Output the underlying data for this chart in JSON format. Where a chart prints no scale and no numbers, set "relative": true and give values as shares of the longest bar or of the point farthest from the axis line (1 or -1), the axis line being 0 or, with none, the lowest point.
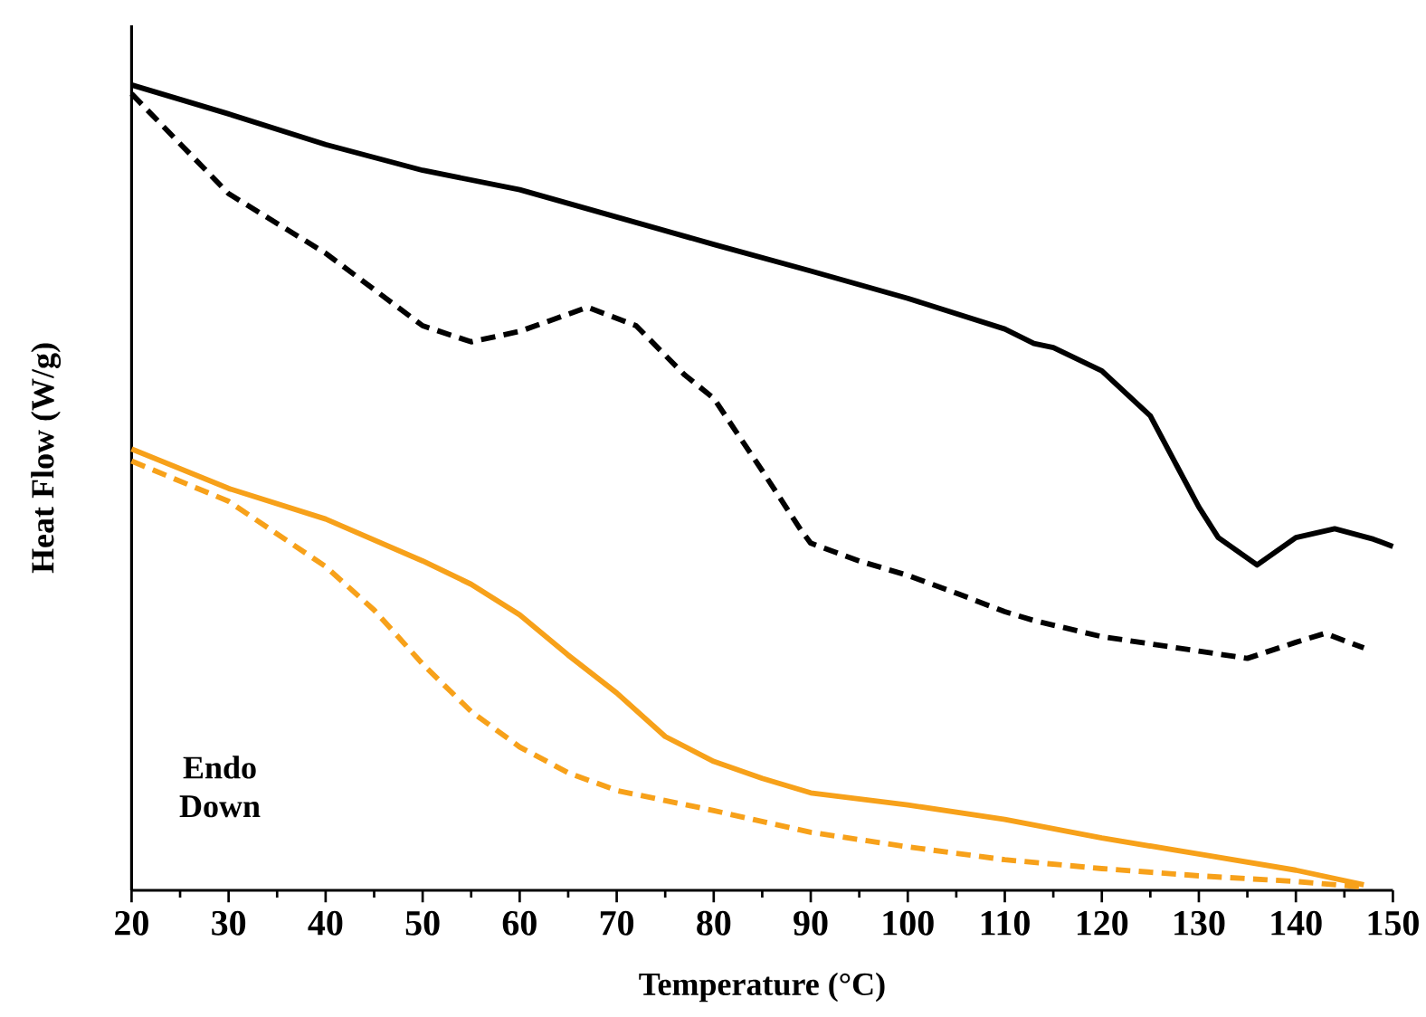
{
  "chart_data": {
    "type": "line",
    "xlabel": "Temperature (°C)",
    "ylabel": "Heat Flow (W/g)",
    "relative": true,
    "tick_labels": "x",
    "xlim": [
      20,
      150
    ],
    "xticks": [
      20,
      30,
      40,
      50,
      60,
      70,
      80,
      90,
      100,
      110,
      120,
      130,
      140,
      150
    ],
    "marker": "none",
    "annotations": [
      "Endo Down"
    ],
    "series": [
      {
        "color": "#000000",
        "line_style": "solid",
        "x": [
          20,
          30,
          40,
          50,
          60,
          70,
          80,
          90,
          100,
          110,
          113,
          115,
          120,
          125,
          128,
          130,
          132,
          136,
          140,
          144,
          148,
          150
        ],
        "values": [
          1.0,
          0.964,
          0.926,
          0.894,
          0.87,
          0.836,
          0.802,
          0.769,
          0.735,
          0.697,
          0.679,
          0.674,
          0.645,
          0.589,
          0.521,
          0.476,
          0.438,
          0.404,
          0.438,
          0.449,
          0.436,
          0.427
        ]
      },
      {
        "color": "#000000",
        "line_style": "dashed",
        "x": [
          20,
          30,
          40,
          50,
          55,
          60,
          67,
          72,
          77,
          80,
          85,
          89,
          90,
          95,
          100,
          105,
          110,
          113,
          120,
          130,
          135,
          140,
          143,
          147
        ],
        "values": [
          0.989,
          0.865,
          0.791,
          0.701,
          0.681,
          0.694,
          0.724,
          0.701,
          0.64,
          0.611,
          0.521,
          0.447,
          0.431,
          0.409,
          0.391,
          0.369,
          0.346,
          0.335,
          0.315,
          0.297,
          0.288,
          0.308,
          0.319,
          0.301
        ]
      },
      {
        "color": "#f7a11a",
        "line_style": "solid",
        "x": [
          20,
          30,
          40,
          50,
          55,
          60,
          65,
          70,
          75,
          80,
          85,
          90,
          100,
          110,
          120,
          130,
          140,
          147
        ],
        "values": [
          0.548,
          0.499,
          0.461,
          0.409,
          0.38,
          0.342,
          0.292,
          0.245,
          0.191,
          0.16,
          0.139,
          0.121,
          0.106,
          0.088,
          0.065,
          0.045,
          0.025,
          0.007
        ]
      },
      {
        "color": "#f7a11a",
        "line_style": "dashed",
        "x": [
          20,
          30,
          40,
          45,
          50,
          55,
          60,
          65,
          70,
          80,
          90,
          100,
          110,
          120,
          130,
          140,
          147
        ],
        "values": [
          0.533,
          0.483,
          0.402,
          0.348,
          0.281,
          0.222,
          0.178,
          0.146,
          0.124,
          0.099,
          0.072,
          0.054,
          0.038,
          0.027,
          0.018,
          0.011,
          0.004
        ]
      }
    ]
  }
}
